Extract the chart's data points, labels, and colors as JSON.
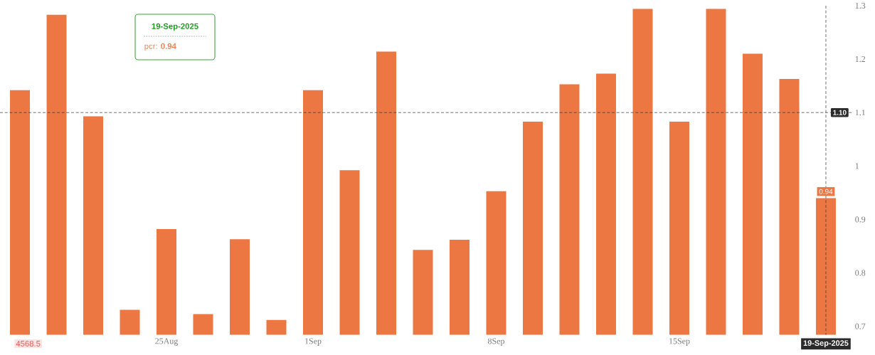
{
  "chart_data": {
    "type": "bar",
    "categories": [
      null,
      null,
      null,
      null,
      "25Aug",
      null,
      null,
      null,
      "1Sep",
      null,
      null,
      null,
      null,
      "8Sep",
      null,
      null,
      null,
      null,
      "15Sep",
      null,
      null,
      null,
      "19-Sep-2025"
    ],
    "values": [
      1.142,
      1.283,
      1.093,
      0.731,
      0.882,
      0.723,
      0.863,
      0.712,
      1.142,
      0.992,
      1.214,
      0.843,
      0.862,
      0.953,
      1.083,
      1.153,
      1.173,
      1.294,
      1.083,
      1.294,
      1.21,
      1.163,
      0.94
    ],
    "color": "#ed7743",
    "value_labels": [
      null,
      null,
      null,
      null,
      null,
      null,
      null,
      null,
      null,
      null,
      null,
      null,
      null,
      null,
      null,
      null,
      null,
      null,
      null,
      null,
      null,
      null,
      "0.94"
    ],
    "ylim": [
      0.684,
      1.3
    ],
    "yticks": [
      0.7,
      0.8,
      0.9,
      1,
      1.1,
      1.2,
      1.3
    ],
    "ref_lines": [
      {
        "axis": "y",
        "value": 1.1,
        "label": "1.10",
        "color": "#2b2b2b",
        "line_style": "dashed"
      },
      {
        "axis": "x",
        "value": "19-Sep-2025",
        "color": "#2b2b2b",
        "line_style": "dashed"
      }
    ],
    "annotations": [
      "19-Sep-2025",
      "pcr: **0.94**",
      "4568.5"
    ]
  }
}
